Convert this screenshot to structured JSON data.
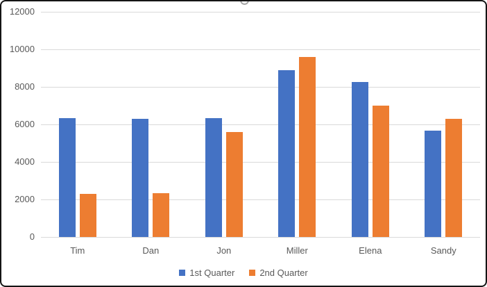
{
  "chart_data": {
    "type": "bar",
    "title": "",
    "categories": [
      "Tim",
      "Dan",
      "Jon",
      "Miller",
      "Elena",
      "Sandy"
    ],
    "series": [
      {
        "name": "1st Quarter",
        "color": "#4472C4",
        "values": [
          6350,
          6300,
          6350,
          8900,
          8250,
          5650
        ]
      },
      {
        "name": "2nd Quarter",
        "color": "#ED7D31",
        "values": [
          2300,
          2350,
          5600,
          9600,
          7000,
          6300
        ]
      }
    ],
    "ylim": [
      0,
      12000
    ],
    "ytick_step": 2000,
    "yticks": [
      "0",
      "2000",
      "4000",
      "6000",
      "8000",
      "10000",
      "12000"
    ],
    "grid": true,
    "legend_position": "bottom",
    "gridline_color": "#d9d9d9",
    "axis_line_color": "#d9d9d9",
    "axis_text_color": "#595959"
  },
  "selection": {
    "handle_positions": [
      "top-center",
      "top-right",
      "right-middle"
    ]
  }
}
